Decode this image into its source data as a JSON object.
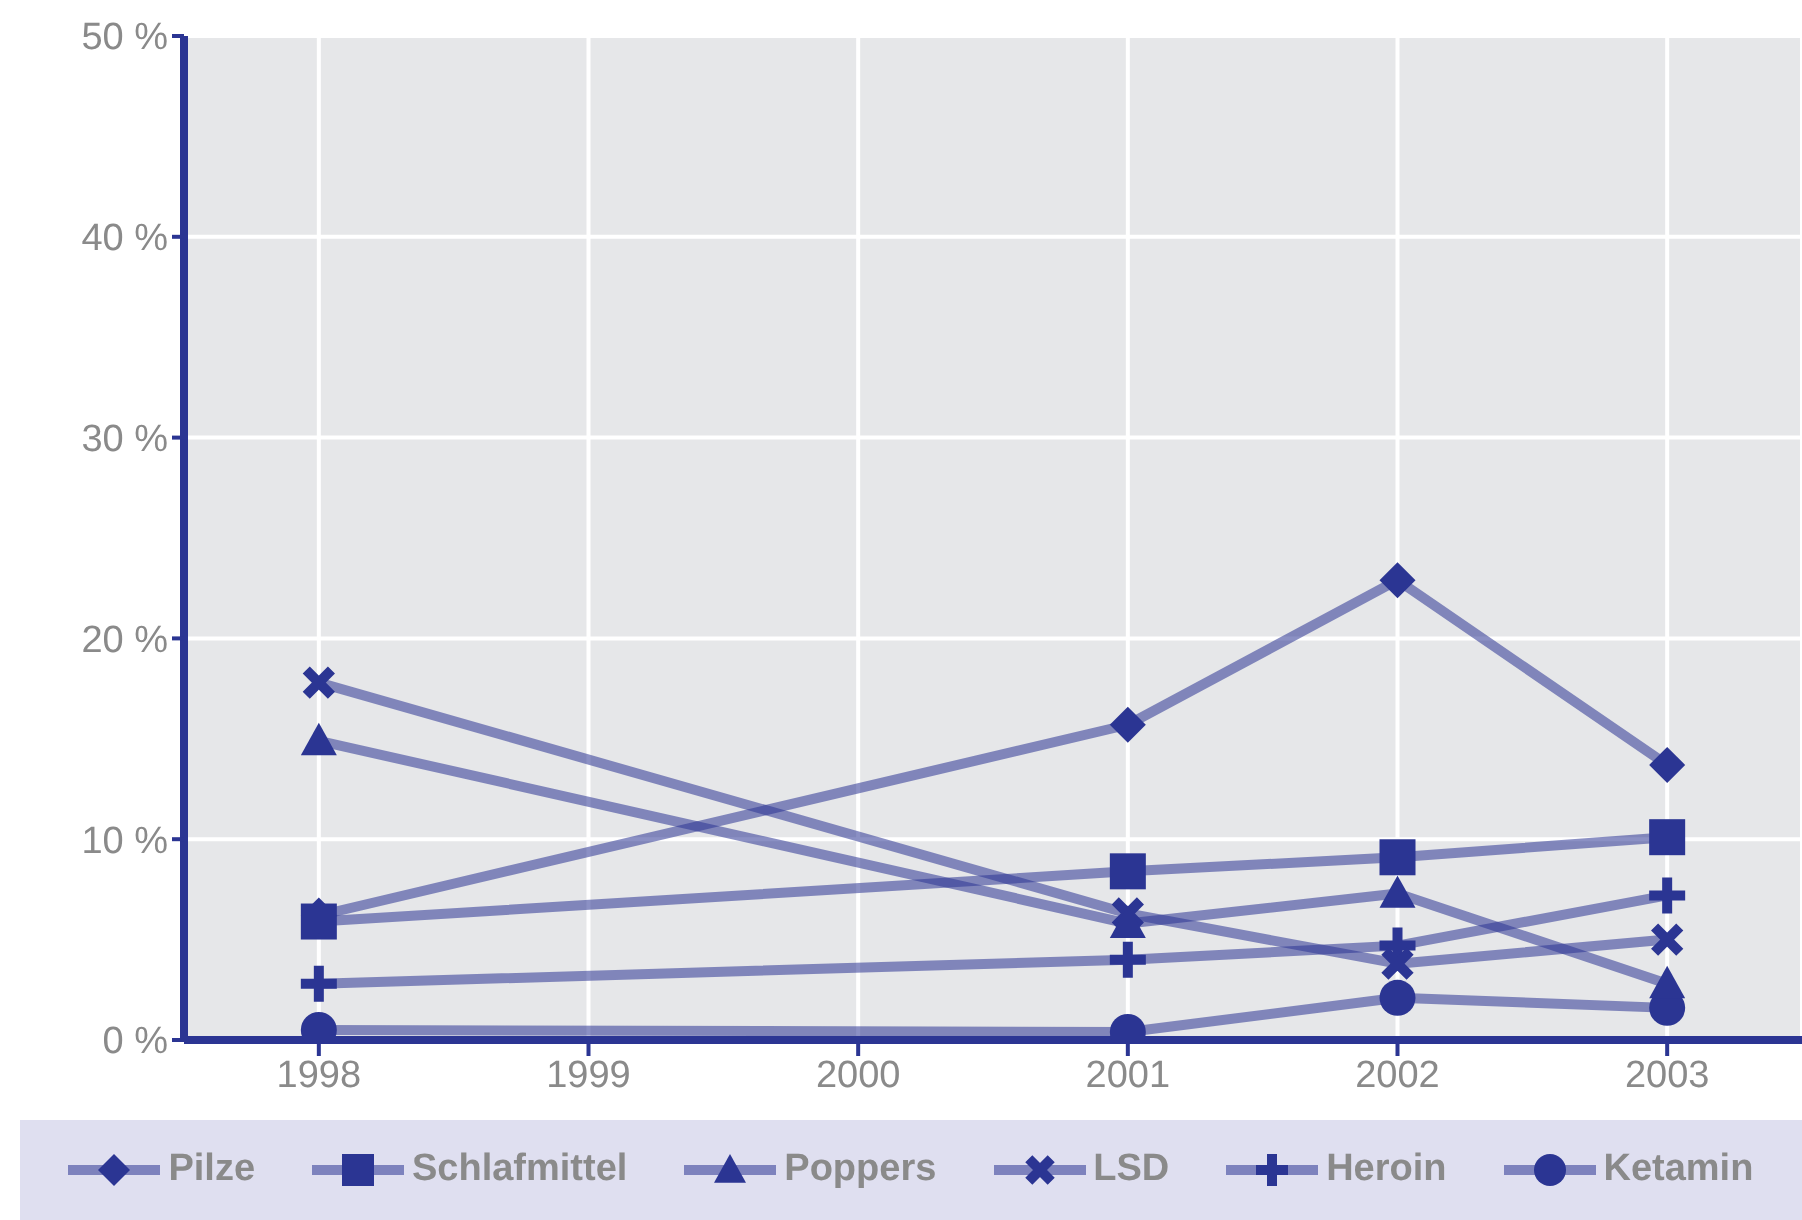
{
  "chart_data": {
    "type": "line",
    "x": [
      1998,
      2001,
      2002,
      2003
    ],
    "xlim": [
      1997.5,
      2003.5
    ],
    "xticks": [
      1998,
      1999,
      2000,
      2001,
      2002,
      2003
    ],
    "ylim": [
      0,
      50
    ],
    "yticks": [
      {
        "value": 0,
        "label": "0 %"
      },
      {
        "value": 10,
        "label": "10 %"
      },
      {
        "value": 20,
        "label": "20 %"
      },
      {
        "value": 30,
        "label": "30 %"
      },
      {
        "value": 40,
        "label": "40 %"
      },
      {
        "value": 50,
        "label": "50 %"
      }
    ],
    "grid": true,
    "legend": "bottom",
    "line_style": "solid",
    "series": [
      {
        "name": "Pilze",
        "color": "#2b3593",
        "marker": "diamond",
        "values": [
          6.2,
          15.7,
          22.9,
          13.7
        ]
      },
      {
        "name": "Schlafmittel",
        "color": "#2b3593",
        "marker": "square",
        "values": [
          5.9,
          8.4,
          9.1,
          10.1
        ]
      },
      {
        "name": "Poppers",
        "color": "#2b3593",
        "marker": "triangle",
        "values": [
          14.9,
          5.8,
          7.3,
          2.8
        ]
      },
      {
        "name": "LSD",
        "color": "#2b3593",
        "marker": "cross",
        "values": [
          17.8,
          6.3,
          3.8,
          5.0
        ]
      },
      {
        "name": "Heroin",
        "color": "#2b3593",
        "marker": "plus",
        "values": [
          2.8,
          4.0,
          4.7,
          7.2
        ]
      },
      {
        "name": "Ketamin",
        "color": "#2b3593",
        "marker": "circle",
        "values": [
          0.5,
          0.4,
          2.1,
          1.6
        ]
      }
    ]
  }
}
